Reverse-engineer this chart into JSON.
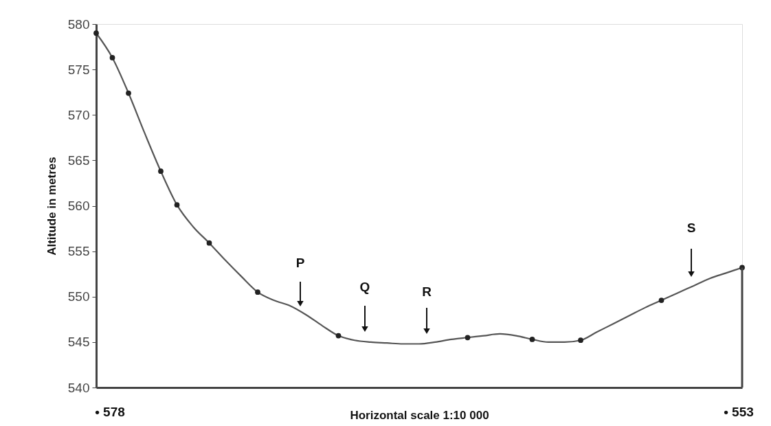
{
  "chart_data": {
    "type": "line",
    "xlabel": "Horizontal scale 1:10 000",
    "ylabel": "Altitude in metres",
    "categories": [
      null,
      null,
      null,
      null,
      null,
      null,
      null,
      null,
      null,
      null,
      null,
      null,
      null,
      null,
      null,
      null,
      null,
      null,
      null,
      null,
      null,
      null,
      null,
      null,
      null,
      null,
      null,
      null,
      null,
      null,
      null,
      null,
      null,
      null,
      null,
      null,
      null,
      null,
      null,
      null,
      null
    ],
    "ylim": [
      540,
      580
    ],
    "yticks": [
      540,
      545,
      550,
      555,
      560,
      565,
      570,
      575,
      580
    ],
    "grid": false,
    "annotations": [
      "P",
      "Q",
      "R",
      "S",
      "• 578",
      "• 553"
    ],
    "series": [
      {
        "color": "#555555",
        "marker": "none",
        "line_style": "solid",
        "values": [
          579.0,
          576.3,
          572.4,
          568.0,
          563.8,
          560.1,
          557.7,
          555.9,
          554.0,
          552.2,
          550.5,
          549.6,
          549.0,
          548.0,
          546.8,
          545.7,
          545.2,
          545.0,
          544.9,
          544.8,
          544.8,
          545.0,
          545.3,
          545.5,
          545.7,
          545.9,
          545.7,
          545.3,
          545.0,
          545.0,
          545.2,
          546.1,
          547.0,
          547.9,
          548.8,
          549.6,
          550.4,
          551.2,
          552.0,
          552.6,
          553.2
        ]
      },
      {
        "type": "scatter",
        "color": "#222222",
        "marker": "circle",
        "values": [
          579.0,
          576.3,
          572.4,
          null,
          563.8,
          560.1,
          null,
          555.9,
          null,
          null,
          550.5,
          null,
          null,
          null,
          null,
          545.7,
          null,
          null,
          null,
          null,
          null,
          null,
          null,
          545.5,
          null,
          null,
          null,
          545.3,
          null,
          null,
          545.2,
          null,
          null,
          null,
          null,
          549.6,
          null,
          null,
          null,
          null,
          553.2
        ]
      }
    ]
  }
}
